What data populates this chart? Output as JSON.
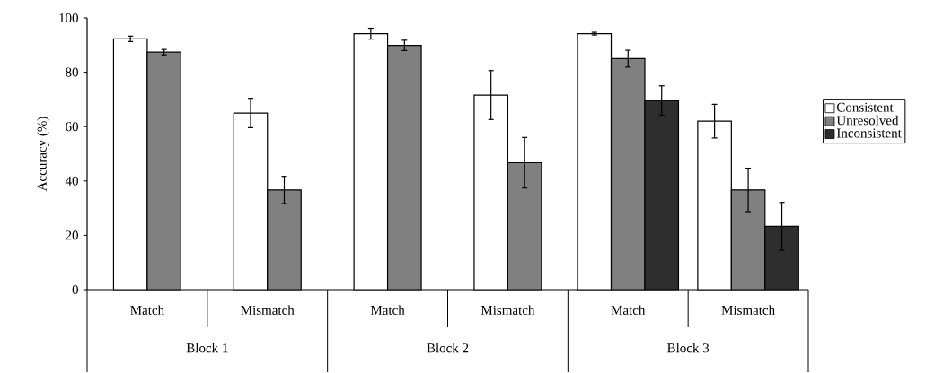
{
  "chart_data": {
    "type": "bar",
    "ylabel": "Accuracy (%)",
    "categories": [
      "Match",
      "Mismatch",
      "Match",
      "Mismatch",
      "Match",
      "Mismatch"
    ],
    "series": [
      {
        "name": "Consistent",
        "color": "#ffffff",
        "values": [
          92.3,
          65,
          94.2,
          71.6,
          94.2,
          62
        ],
        "errors": [
          1,
          5.4,
          2,
          9,
          0.5,
          6.2
        ]
      },
      {
        "name": "Unresolved",
        "color": "#808080",
        "values": [
          87.4,
          36.7,
          89.9,
          46.7,
          85,
          36.7
        ],
        "errors": [
          1,
          5,
          1.9,
          9.3,
          3.1,
          8
        ]
      },
      {
        "name": "Inconsistent",
        "color": "#2e2e2e",
        "values": [
          null,
          null,
          null,
          null,
          69.6,
          23.3
        ],
        "errors": [
          null,
          null,
          null,
          null,
          5.4,
          8.8
        ]
      }
    ],
    "annotations": [
      "Block 1",
      "Block 2",
      "Block 3"
    ],
    "ylim": [
      0,
      100
    ],
    "yticks": [
      0,
      20,
      40,
      60,
      80,
      100
    ],
    "legend": "right"
  }
}
